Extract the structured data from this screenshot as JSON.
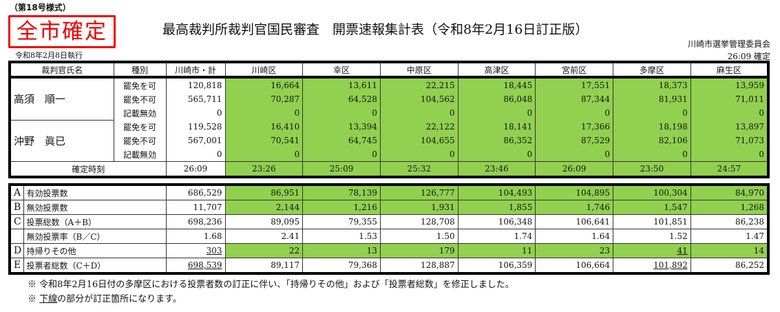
{
  "header": {
    "form_number": "（第18号様式）",
    "stamp": "全市確定",
    "title": "最高裁判所裁判官国民審査　開票速報集計表（令和8年2月16日訂正版）",
    "election_date": "令和8年2月8日執行",
    "organization": "川崎市選挙管理委員会",
    "confirmed": "26:09 確定"
  },
  "colors": {
    "green": "#92d050",
    "stamp_red": "#e00000"
  },
  "columns": [
    "裁判官氏名",
    "種別",
    "川崎市・計",
    "川崎区",
    "幸区",
    "中原区",
    "高津区",
    "宮前区",
    "多摩区",
    "麻生区"
  ],
  "judges": [
    {
      "name": "高須　順一",
      "rows": [
        {
          "type": "罷免を可",
          "values": [
            "120,818",
            "16,664",
            "13,611",
            "22,215",
            "18,445",
            "17,551",
            "18,373",
            "13,959"
          ]
        },
        {
          "type": "罷免不可",
          "values": [
            "565,711",
            "70,287",
            "64,528",
            "104,562",
            "86,048",
            "87,344",
            "81,931",
            "71,011"
          ]
        },
        {
          "type": "記載無効",
          "values": [
            "0",
            "0",
            "0",
            "0",
            "0",
            "0",
            "0",
            "0"
          ]
        }
      ]
    },
    {
      "name": "沖野　眞已",
      "rows": [
        {
          "type": "罷免を可",
          "values": [
            "119,528",
            "16,410",
            "13,394",
            "22,122",
            "18,141",
            "17,366",
            "18,198",
            "13,897"
          ]
        },
        {
          "type": "罷免不可",
          "values": [
            "567,001",
            "70,541",
            "64,745",
            "104,655",
            "86,352",
            "87,529",
            "82,106",
            "71,073"
          ]
        },
        {
          "type": "記載無効",
          "values": [
            "0",
            "0",
            "0",
            "0",
            "0",
            "0",
            "0",
            "0"
          ]
        }
      ]
    }
  ],
  "confirm_time": {
    "label": "確定時刻",
    "values": [
      "26:09",
      "23:26",
      "25:09",
      "25:32",
      "23:46",
      "26:09",
      "23:50",
      "24:57"
    ]
  },
  "summary": [
    {
      "letter": "A",
      "label": "有効投票数",
      "green": true,
      "values": [
        "686,529",
        "86,951",
        "78,139",
        "126,777",
        "104,493",
        "104,895",
        "100,304",
        "84,970"
      ],
      "underlined": []
    },
    {
      "letter": "B",
      "label": "無効投票数",
      "green": true,
      "values": [
        "11,707",
        "2,144",
        "1,216",
        "1,931",
        "1,855",
        "1,746",
        "1,547",
        "1,268"
      ],
      "underlined": []
    },
    {
      "letter": "C",
      "label": "投票総数（A＋B）",
      "green": false,
      "values": [
        "698,236",
        "89,095",
        "79,355",
        "128,708",
        "106,348",
        "106,641",
        "101,851",
        "86,238"
      ],
      "underlined": []
    },
    {
      "letter": "",
      "label": "無効投票率（B／C）",
      "green": false,
      "values": [
        "1.68",
        "2.41",
        "1.53",
        "1.50",
        "1.74",
        "1.64",
        "1.52",
        "1.47"
      ],
      "underlined": []
    },
    {
      "letter": "D",
      "label": "持帰りその他",
      "green": true,
      "values": [
        "303",
        "22",
        "13",
        "179",
        "11",
        "23",
        "41",
        "14"
      ],
      "underlined": [
        0,
        6
      ]
    },
    {
      "letter": "E",
      "label": "投票者総数（C＋D）",
      "green": false,
      "values": [
        "698,539",
        "89,117",
        "79,368",
        "128,887",
        "106,359",
        "106,664",
        "101,892",
        "86,252"
      ],
      "underlined": [
        0,
        6
      ]
    }
  ],
  "notes": [
    "※ 令和8年2月16日付の多摩区における投票者数の訂正に伴い、「持帰りその他」および「投票者総数」を修正しました。",
    "※ 下線の部分が訂正箇所になります。"
  ]
}
